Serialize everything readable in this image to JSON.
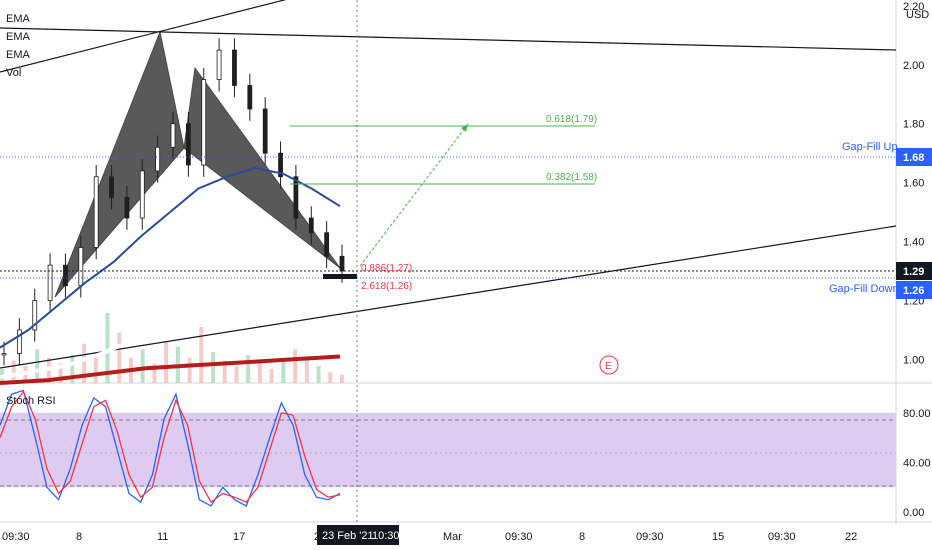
{
  "legend": [
    "EMA",
    "EMA",
    "EMA",
    "Vol"
  ],
  "currency": "USD",
  "price_axis": {
    "ticks": [
      "1.00",
      "1.20",
      "1.40",
      "1.60",
      "1.80",
      "2.00",
      "2.20"
    ],
    "ylim": [
      0.92,
      2.22
    ]
  },
  "price_badges": {
    "gap_fill_up": {
      "label": "Gap-Fill Up",
      "value": "1.68",
      "color": "#2962ff"
    },
    "current": {
      "value": "1.29",
      "color": "#131722"
    },
    "gap_fill_down": {
      "label": "Gap-Fill Down",
      "value": "1.26",
      "color": "#2962ff"
    }
  },
  "fib_labels": {
    "f618": "0.618(1.79)",
    "f382": "0.382(1.58)",
    "f886": "0.886(1.27)",
    "f2618": "2.618(1.26)"
  },
  "event_marker": "E",
  "stoch": {
    "title": "Stoch RSI",
    "ticks": [
      "80.00",
      "40.00",
      "0.00"
    ],
    "ylim": [
      -8,
      104
    ],
    "band": [
      20,
      80
    ]
  },
  "time_axis": {
    "labels": [
      "09:30",
      "8",
      "11",
      "17",
      "22",
      "Mar",
      "09:30",
      "8",
      "09:30",
      "15",
      "09:30",
      "22"
    ],
    "crosshair_date": "23 Feb '21",
    "crosshair_time": "10:30"
  },
  "chart_data": {
    "type": "line",
    "series": [
      {
        "values": [
          1.02,
          1.1,
          1.2,
          1.32,
          1.25,
          1.38,
          1.62,
          1.55,
          1.48,
          1.64,
          1.72,
          1.8,
          1.66,
          1.95,
          2.05,
          1.93,
          1.85,
          1.7,
          1.62,
          1.48,
          1.43,
          1.35,
          1.3
        ]
      },
      {
        "values": [
          1.04,
          1.1,
          1.18,
          1.26,
          1.33,
          1.42,
          1.5,
          1.58,
          1.62,
          1.65,
          1.63,
          1.58,
          1.52
        ]
      },
      {
        "values": [
          0.94,
          0.96,
          0.98,
          1.02,
          1.07,
          1.12,
          1.17,
          1.21,
          1.24,
          1.26,
          1.27
        ]
      },
      {
        "values": [
          0.92,
          0.93,
          0.95,
          0.97,
          0.98,
          0.99,
          1.0,
          1.01
        ]
      },
      {
        "values": [
          5,
          8,
          6,
          12,
          9,
          7,
          10,
          14,
          11,
          25,
          18,
          9,
          12,
          7,
          15,
          13,
          9,
          20,
          11,
          8,
          6,
          10,
          7,
          5,
          8,
          12,
          9,
          6,
          4,
          3
        ]
      }
    ],
    "stoch_series": [
      {
        "color": "#2962ff",
        "values": [
          70,
          95,
          98,
          60,
          20,
          10,
          35,
          70,
          92,
          85,
          50,
          15,
          8,
          30,
          75,
          95,
          55,
          10,
          5,
          20,
          10,
          5,
          30,
          60,
          88,
          70,
          30,
          12,
          10,
          15
        ]
      },
      {
        "color": "#f23645",
        "values": [
          60,
          85,
          97,
          75,
          35,
          15,
          25,
          55,
          85,
          90,
          65,
          30,
          12,
          20,
          60,
          90,
          70,
          25,
          8,
          15,
          12,
          8,
          20,
          50,
          80,
          78,
          45,
          18,
          12,
          14
        ]
      }
    ]
  }
}
